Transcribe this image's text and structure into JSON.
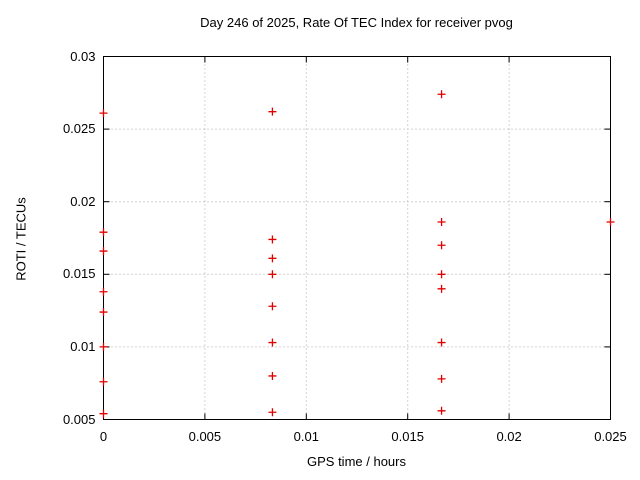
{
  "chart_data": {
    "type": "scatter",
    "title": "Day 246 of 2025, Rate Of TEC Index for receiver pvog",
    "xlabel": "GPS time / hours",
    "ylabel": "ROTI / TECUs",
    "xlim": [
      0,
      0.025
    ],
    "ylim": [
      0.005,
      0.03
    ],
    "xticks": [
      0,
      0.005,
      0.01,
      0.015,
      0.02,
      0.025
    ],
    "xtick_labels": [
      "0",
      "0.005",
      "0.01",
      "0.015",
      "0.02",
      "0.025"
    ],
    "yticks": [
      0.005,
      0.01,
      0.015,
      0.02,
      0.025,
      0.03
    ],
    "ytick_labels": [
      "0.005",
      "0.01",
      "0.015",
      "0.02",
      "0.025",
      "0.03"
    ],
    "grid": true,
    "legend_position": "none",
    "marker": "plus",
    "colors": {
      "marker": "#e10000",
      "axis": "#000000",
      "grid": "#a8a8a8",
      "background": "#ffffff"
    },
    "series": [
      {
        "name": "ROTI",
        "points": [
          [
            0,
            0.0261
          ],
          [
            0,
            0.0179
          ],
          [
            0,
            0.0166
          ],
          [
            0,
            0.0138
          ],
          [
            0,
            0.0124
          ],
          [
            0,
            0.01
          ],
          [
            0,
            0.0076
          ],
          [
            0,
            0.0054
          ],
          [
            0.00833,
            0.0262
          ],
          [
            0.00833,
            0.0174
          ],
          [
            0.00833,
            0.0161
          ],
          [
            0.00833,
            0.015
          ],
          [
            0.00833,
            0.0128
          ],
          [
            0.00833,
            0.0103
          ],
          [
            0.00833,
            0.008
          ],
          [
            0.00833,
            0.0055
          ],
          [
            0.01667,
            0.0274
          ],
          [
            0.01667,
            0.0186
          ],
          [
            0.01667,
            0.017
          ],
          [
            0.01667,
            0.015
          ],
          [
            0.01667,
            0.014
          ],
          [
            0.01667,
            0.0103
          ],
          [
            0.01667,
            0.0078
          ],
          [
            0.01667,
            0.0056
          ],
          [
            0.025,
            0.0186
          ]
        ]
      }
    ]
  }
}
